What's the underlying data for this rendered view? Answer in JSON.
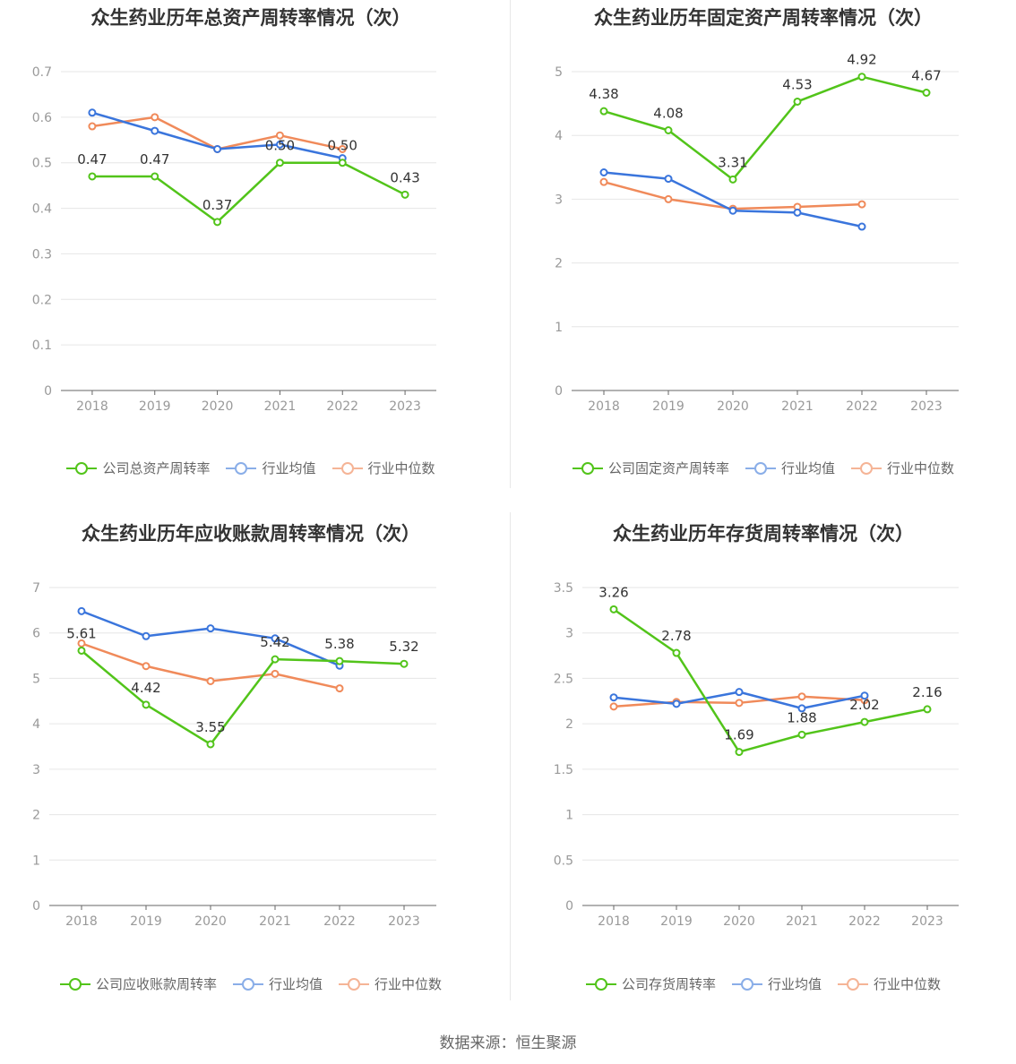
{
  "footer": "数据来源：恒生聚源",
  "legend_common": [
    "行业均值",
    "行业中位数"
  ],
  "colors": {
    "company": "#52c41a",
    "avg": "#3a75dc",
    "median": "#f08a5a",
    "grid": "#e6e6e6",
    "axis": "#666666",
    "tick": "#999999",
    "label": "#333333"
  },
  "chart_data": [
    {
      "type": "line",
      "title": "众生药业历年总资产周转率情况（次）",
      "categories": [
        "2018",
        "2019",
        "2020",
        "2021",
        "2022",
        "2023"
      ],
      "ylim": [
        0,
        0.7
      ],
      "yticks": [
        "0",
        "0.1",
        "0.2",
        "0.3",
        "0.4",
        "0.5",
        "0.6",
        "0.7"
      ],
      "series": [
        {
          "name": "公司总资产周转率",
          "values": [
            0.47,
            0.47,
            0.37,
            0.5,
            0.5,
            0.43
          ],
          "labels": [
            "0.47",
            "0.47",
            "0.37",
            "0.50",
            "0.50",
            "0.43"
          ]
        },
        {
          "name": "行业均值",
          "values": [
            0.61,
            0.57,
            0.53,
            0.54,
            0.51,
            null
          ]
        },
        {
          "name": "行业中位数",
          "values": [
            0.58,
            0.6,
            0.53,
            0.56,
            0.53,
            null
          ]
        }
      ]
    },
    {
      "type": "line",
      "title": "众生药业历年固定资产周转率情况（次）",
      "categories": [
        "2018",
        "2019",
        "2020",
        "2021",
        "2022",
        "2023"
      ],
      "ylim": [
        0,
        5
      ],
      "yticks": [
        "0",
        "1",
        "2",
        "3",
        "4",
        "5"
      ],
      "series": [
        {
          "name": "公司固定资产周转率",
          "values": [
            4.38,
            4.08,
            3.31,
            4.53,
            4.92,
            4.67
          ],
          "labels": [
            "4.38",
            "4.08",
            "3.31",
            "4.53",
            "4.92",
            "4.67"
          ]
        },
        {
          "name": "行业均值",
          "values": [
            3.42,
            3.32,
            2.82,
            2.79,
            2.57,
            null
          ]
        },
        {
          "name": "行业中位数",
          "values": [
            3.27,
            3.0,
            2.85,
            2.88,
            2.92,
            null
          ]
        }
      ]
    },
    {
      "type": "line",
      "title": "众生药业历年应收账款周转率情况（次）",
      "categories": [
        "2018",
        "2019",
        "2020",
        "2021",
        "2022",
        "2023"
      ],
      "ylim": [
        0,
        7
      ],
      "yticks": [
        "0",
        "1",
        "2",
        "3",
        "4",
        "5",
        "6",
        "7"
      ],
      "series": [
        {
          "name": "公司应收账款周转率",
          "values": [
            5.61,
            4.42,
            3.55,
            5.42,
            5.38,
            5.32
          ],
          "labels": [
            "5.61",
            "4.42",
            "3.55",
            "5.42",
            "5.38",
            "5.32"
          ]
        },
        {
          "name": "行业均值",
          "values": [
            6.48,
            5.93,
            6.1,
            5.88,
            5.28,
            null
          ]
        },
        {
          "name": "行业中位数",
          "values": [
            5.77,
            5.27,
            4.94,
            5.1,
            4.78,
            null
          ]
        }
      ]
    },
    {
      "type": "line",
      "title": "众生药业历年存货周转率情况（次）",
      "categories": [
        "2018",
        "2019",
        "2020",
        "2021",
        "2022",
        "2023"
      ],
      "ylim": [
        0,
        3.5
      ],
      "yticks": [
        "0",
        "0.5",
        "1",
        "1.5",
        "2",
        "2.5",
        "3",
        "3.5"
      ],
      "series": [
        {
          "name": "公司存货周转率",
          "values": [
            3.26,
            2.78,
            1.69,
            1.88,
            2.02,
            2.16
          ],
          "labels": [
            "3.26",
            "2.78",
            "1.69",
            "1.88",
            "2.02",
            "2.16"
          ]
        },
        {
          "name": "行业均值",
          "values": [
            2.29,
            2.22,
            2.35,
            2.17,
            2.31,
            null
          ]
        },
        {
          "name": "行业中位数",
          "values": [
            2.19,
            2.24,
            2.23,
            2.3,
            2.26,
            null
          ]
        }
      ]
    }
  ]
}
